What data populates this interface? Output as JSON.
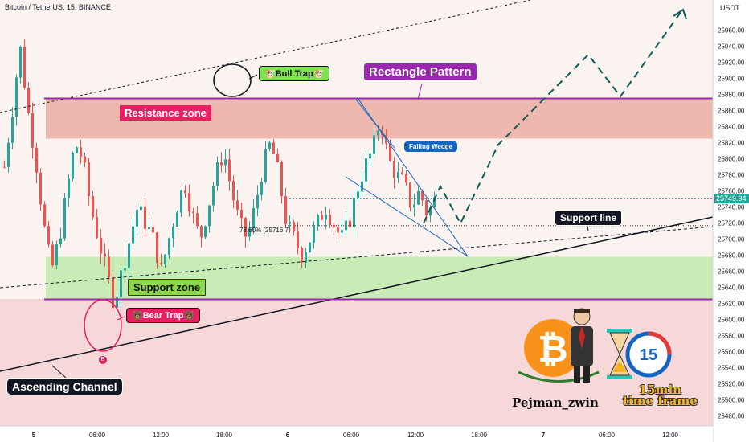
{
  "chart_title": "Bitcoin / TetherUS, 15, BINANCE",
  "currency_label": "USDT",
  "current_price_label": "25749.94",
  "fib_label": "78.60% (25716.7)",
  "annotations": {
    "bull_trap": "🐮Bull Trap🐮",
    "bear_trap": "🐻Bear Trap🐻",
    "rectangle_pattern": "Rectangle Pattern",
    "resistance_zone": "Resistance zone",
    "support_zone": "Support zone",
    "falling_wedge": "Falling Wedge",
    "support_line": "Support line",
    "ascending_channel": "Ascending Channel",
    "author": "Pejman_zwin",
    "timeframe_line1": "15min",
    "timeframe_line2": "time frame",
    "badge_number": "15",
    "bitcoin_symbol": "₿",
    "marker_b": "B"
  },
  "colors": {
    "up": "#26a69a",
    "down": "#ef5350",
    "resistance_fill": "#eeb8ae",
    "support_fill": "#c9ecb7",
    "pattern_line": "#9c27b0",
    "label_dark": "#131722",
    "resistance_label_bg": "#e91e63",
    "support_label_bg": "#8ad84a",
    "bull_label_bg": "#7ee34f",
    "bear_label_bg": "#e91e63",
    "wedge_label_bg": "#1565c0",
    "rect_label_bg": "#9c27b0",
    "projection": "#0f5b58",
    "current_price_bg": "#26a69a"
  },
  "chart_data": {
    "type": "candlestick",
    "y_axis": {
      "ticks": [
        25480,
        25500,
        25520,
        25540,
        25560,
        25580,
        25600,
        25620,
        25640,
        25660,
        25680,
        25700,
        25720,
        25740,
        25760,
        25780,
        25800,
        25820,
        25840,
        25860,
        25880,
        25900,
        25920,
        25940,
        25960
      ],
      "range": [
        25462,
        25985
      ]
    },
    "x_axis": {
      "ticks": [
        "5",
        "06:00",
        "12:00",
        "18:00",
        "6",
        "06:00",
        "12:00",
        "18:00",
        "7",
        "06:00",
        "12:00"
      ]
    },
    "close_path": [
      25790,
      25860,
      25940,
      25860,
      25800,
      25720,
      25660,
      25700,
      25760,
      25820,
      25800,
      25740,
      25700,
      25660,
      25620,
      25660,
      25700,
      25740,
      25720,
      25700,
      25660,
      25700,
      25740,
      25770,
      25730,
      25700,
      25740,
      25780,
      25810,
      25760,
      25720,
      25700,
      25740,
      25790,
      25820,
      25780,
      25720,
      25700,
      25680,
      25700,
      25720,
      25740,
      25720,
      25700,
      25720,
      25760,
      25790,
      25810,
      25850,
      25800,
      25780,
      25770,
      25740,
      25760,
      25730,
      25750
    ],
    "resistance_zone": [
      25825,
      25875
    ],
    "support_zone": [
      25625,
      25678
    ],
    "rectangle_top": 25875,
    "rectangle_bottom": 25625,
    "current_price": 25749.94,
    "fib_level": 25716.7,
    "projection": [
      {
        "t": "6 14:00",
        "price": 25760
      },
      {
        "t": "6 16:00",
        "price": 25720
      },
      {
        "t": "6 22:00",
        "price": 25870
      },
      {
        "t": "7 04:00",
        "price": 25930
      },
      {
        "t": "7 09:00",
        "price": 25870
      },
      {
        "t": "7 13:00",
        "price": 25975
      }
    ]
  }
}
